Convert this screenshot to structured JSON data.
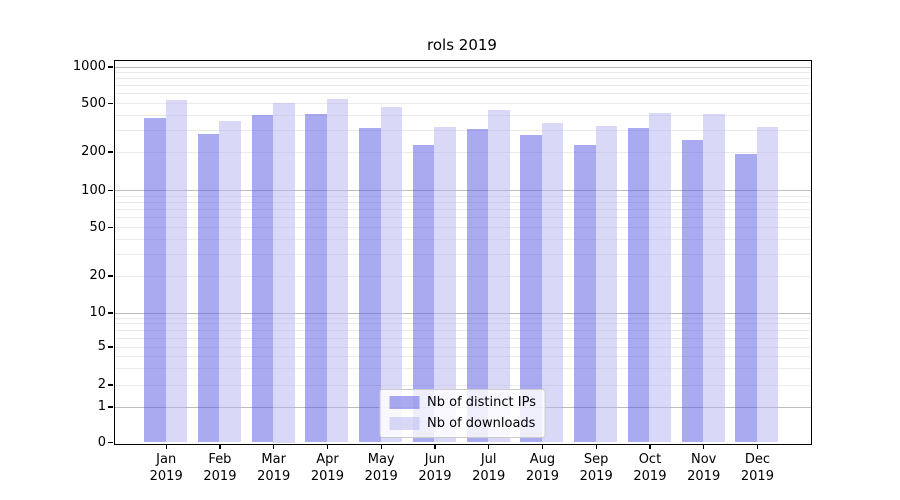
{
  "title": "rols 2019",
  "chart_data": {
    "type": "bar",
    "title": "rols 2019",
    "categories": [
      "Jan 2019",
      "Feb 2019",
      "Mar 2019",
      "Apr 2019",
      "May 2019",
      "Jun 2019",
      "Jul 2019",
      "Aug 2019",
      "Sep 2019",
      "Oct 2019",
      "Nov 2019",
      "Dec 2019"
    ],
    "series": [
      {
        "name": "Nb of distinct IPs",
        "color": "rgba(85,85,226,0.5)",
        "values": [
          380,
          280,
          400,
          405,
          310,
          225,
          305,
          275,
          225,
          310,
          250,
          190
        ]
      },
      {
        "name": "Nb of downloads",
        "color": "rgba(180,180,240,0.5)",
        "values": [
          530,
          355,
          500,
          535,
          460,
          320,
          440,
          345,
          325,
          415,
          405,
          320
        ]
      }
    ],
    "xlabel": "",
    "ylabel": "",
    "yscale": "symlog",
    "y_ticks": [
      0,
      1,
      2,
      5,
      10,
      20,
      50,
      100,
      200,
      500,
      1000
    ],
    "ylim": [
      0,
      1150
    ],
    "grid": true,
    "legend_position": "lower center"
  },
  "legend": {
    "items": [
      {
        "label": "Nb of distinct IPs",
        "color": "rgba(85,85,226,0.5)"
      },
      {
        "label": "Nb of downloads",
        "color": "rgba(180,180,240,0.5)"
      }
    ]
  },
  "colors": {
    "series_distinct_ips": "rgba(85,85,226,0.5)",
    "series_downloads": "rgba(180,180,240,0.5)",
    "grid_major": "#bcbcbc",
    "grid_minor": "#ebebeb",
    "spine": "#000000",
    "background": "#ffffff"
  }
}
